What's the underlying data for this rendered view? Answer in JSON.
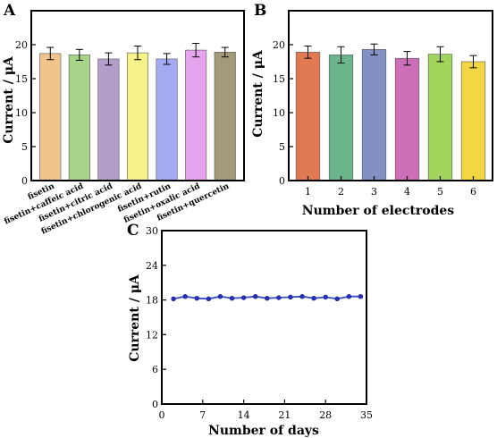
{
  "chart_data": [
    {
      "type": "bar",
      "panel": "A",
      "ylabel": "Current / μA",
      "xlabel": "",
      "ylim": [
        0,
        25
      ],
      "yticks": [
        "0",
        "5",
        "10",
        "15",
        "20"
      ],
      "categories": [
        "fisetin",
        "fisetin+caffeic acid",
        "fisetin+citric acid",
        "fisetin+chlorogenic acid",
        "fisetin+rutin",
        "fisetin+oxalic acid",
        "fisetin+quercetin"
      ],
      "values": [
        18.7,
        18.5,
        17.9,
        18.8,
        17.9,
        19.2,
        18.9
      ],
      "errors": [
        0.9,
        0.8,
        0.9,
        1.0,
        0.8,
        1.0,
        0.7
      ],
      "colors": [
        "#f0c58c",
        "#a8d48a",
        "#b39ecb",
        "#f7f28a",
        "#a4abf2",
        "#e7a4ee",
        "#a39a7a"
      ]
    },
    {
      "type": "bar",
      "panel": "B",
      "ylabel": "Current / μA",
      "xlabel": "Number of electrodes",
      "ylim": [
        0,
        25
      ],
      "yticks": [
        "0",
        "5",
        "10",
        "15",
        "20"
      ],
      "categories": [
        "1",
        "2",
        "3",
        "4",
        "5",
        "6"
      ],
      "values": [
        18.9,
        18.5,
        19.3,
        18.0,
        18.6,
        17.5
      ],
      "errors": [
        0.9,
        1.2,
        0.8,
        1.0,
        1.1,
        0.9
      ],
      "colors": [
        "#e17a52",
        "#6bb58c",
        "#8290c2",
        "#cd6fb8",
        "#a3d55e",
        "#f2d643"
      ]
    },
    {
      "type": "line",
      "panel": "C",
      "ylabel": "Current / μA",
      "xlabel": "Number of days",
      "xlim": [
        0,
        35
      ],
      "ylim": [
        0,
        30
      ],
      "xticks": [
        "0",
        "7",
        "14",
        "21",
        "28",
        "35"
      ],
      "yticks": [
        "0",
        "6",
        "12",
        "18",
        "24",
        "30"
      ],
      "x": [
        2,
        4,
        6,
        8,
        10,
        12,
        14,
        16,
        18,
        20,
        22,
        24,
        26,
        28,
        30,
        32,
        34
      ],
      "y": [
        18.2,
        18.6,
        18.3,
        18.2,
        18.6,
        18.3,
        18.4,
        18.6,
        18.3,
        18.4,
        18.5,
        18.6,
        18.3,
        18.5,
        18.2,
        18.6,
        18.6
      ],
      "colors": {
        "line": "#3a4fc4",
        "marker": "#2a30c0"
      }
    }
  ]
}
